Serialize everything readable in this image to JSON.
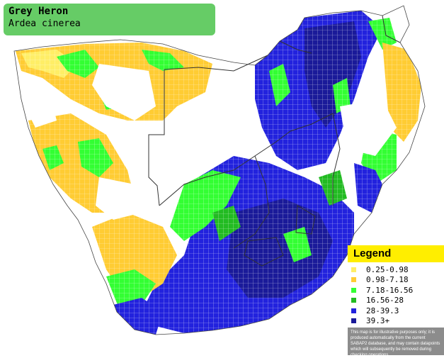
{
  "header": {
    "common_name": "Grey Heron",
    "scientific_name": "Ardea cinerea"
  },
  "legend": {
    "title": "Legend",
    "items": [
      {
        "label": "0.25-0.98",
        "color": "#ffee66"
      },
      {
        "label": "0.98-7.18",
        "color": "#ffcc33"
      },
      {
        "label": "7.18-16.56",
        "color": "#33ff33"
      },
      {
        "label": "16.56-28",
        "color": "#22bb22"
      },
      {
        "label": "28-39.3",
        "color": "#2222dd"
      },
      {
        "label": "39.3+",
        "color": "#1a1a99"
      }
    ],
    "disclaimer": "This map is for illustrative purposes only; it is produced automatically from the current SABAP2 database, and may contain datapoints which will subsequently be removed during checking operations."
  },
  "map_colors": {
    "land": "#ffffff",
    "border": "#333333",
    "grid_line": "#ffffff"
  }
}
